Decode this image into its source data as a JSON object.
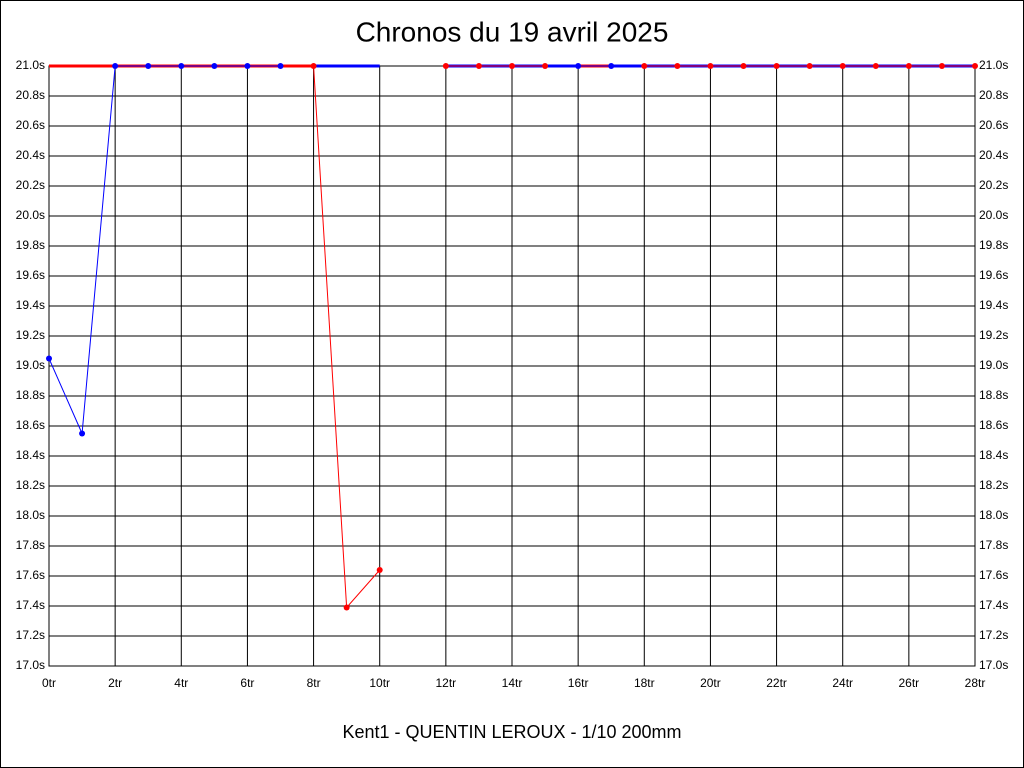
{
  "chart_data": {
    "type": "line",
    "title": "Chronos du 19 avril 2025",
    "xlabel": "Kent1 - QUENTIN LEROUX - 1/10 200mm",
    "x": [
      0,
      1,
      2,
      3,
      4,
      5,
      6,
      7,
      8,
      9,
      10,
      11,
      12,
      13,
      14,
      15,
      16,
      17,
      18,
      19,
      20,
      21,
      22,
      23,
      24,
      25,
      26,
      27,
      28
    ],
    "series": [
      {
        "color": "#0000ff",
        "values": [
          19.05,
          18.55,
          21,
          21,
          21,
          21,
          21,
          21,
          null,
          null,
          null,
          null,
          null,
          null,
          null,
          null,
          21,
          21,
          null,
          null,
          null,
          null,
          null,
          null,
          null,
          null,
          null,
          null,
          null
        ]
      },
      {
        "color": "#ff0000",
        "values": [
          null,
          null,
          null,
          null,
          null,
          null,
          null,
          null,
          21,
          17.39,
          17.64,
          null,
          21,
          21,
          21,
          21,
          null,
          null,
          21,
          21,
          21,
          21,
          21,
          21,
          21,
          21,
          21,
          21,
          21
        ]
      }
    ],
    "top_band": [
      {
        "from": 0,
        "to": 8,
        "color": "#ff0000"
      },
      {
        "from": 8,
        "to": 10,
        "color": "#0000ff"
      },
      {
        "from": 12,
        "to": 16,
        "color": "#0000ff"
      },
      {
        "from": 16,
        "to": 17,
        "color": "#ff0000"
      },
      {
        "from": 17,
        "to": 28,
        "color": "#0000ff"
      }
    ],
    "xlim": [
      0,
      28
    ],
    "xticks": [
      {
        "value": 0,
        "label": "0tr"
      },
      {
        "value": 2,
        "label": "2tr"
      },
      {
        "value": 4,
        "label": "4tr"
      },
      {
        "value": 6,
        "label": "6tr"
      },
      {
        "value": 8,
        "label": "8tr"
      },
      {
        "value": 10,
        "label": "10tr"
      },
      {
        "value": 12,
        "label": "12tr"
      },
      {
        "value": 14,
        "label": "14tr"
      },
      {
        "value": 16,
        "label": "16tr"
      },
      {
        "value": 18,
        "label": "18tr"
      },
      {
        "value": 20,
        "label": "20tr"
      },
      {
        "value": 22,
        "label": "22tr"
      },
      {
        "value": 24,
        "label": "24tr"
      },
      {
        "value": 26,
        "label": "26tr"
      },
      {
        "value": 28,
        "label": "28tr"
      }
    ],
    "ylim": [
      17,
      21
    ],
    "yticks": [
      {
        "value": 17,
        "label": "17.0s"
      },
      {
        "value": 17.2,
        "label": "17.2s"
      },
      {
        "value": 17.4,
        "label": "17.4s"
      },
      {
        "value": 17.6,
        "label": "17.6s"
      },
      {
        "value": 17.8,
        "label": "17.8s"
      },
      {
        "value": 18,
        "label": "18.0s"
      },
      {
        "value": 18.2,
        "label": "18.2s"
      },
      {
        "value": 18.4,
        "label": "18.4s"
      },
      {
        "value": 18.6,
        "label": "18.6s"
      },
      {
        "value": 18.8,
        "label": "18.8s"
      },
      {
        "value": 19,
        "label": "19.0s"
      },
      {
        "value": 19.2,
        "label": "19.2s"
      },
      {
        "value": 19.4,
        "label": "19.4s"
      },
      {
        "value": 19.6,
        "label": "19.6s"
      },
      {
        "value": 19.8,
        "label": "19.8s"
      },
      {
        "value": 20,
        "label": "20.0s"
      },
      {
        "value": 20.2,
        "label": "20.2s"
      },
      {
        "value": 20.4,
        "label": "20.4s"
      },
      {
        "value": 20.6,
        "label": "20.6s"
      },
      {
        "value": 20.8,
        "label": "20.8s"
      },
      {
        "value": 21,
        "label": "21.0s"
      }
    ],
    "grid": true
  }
}
